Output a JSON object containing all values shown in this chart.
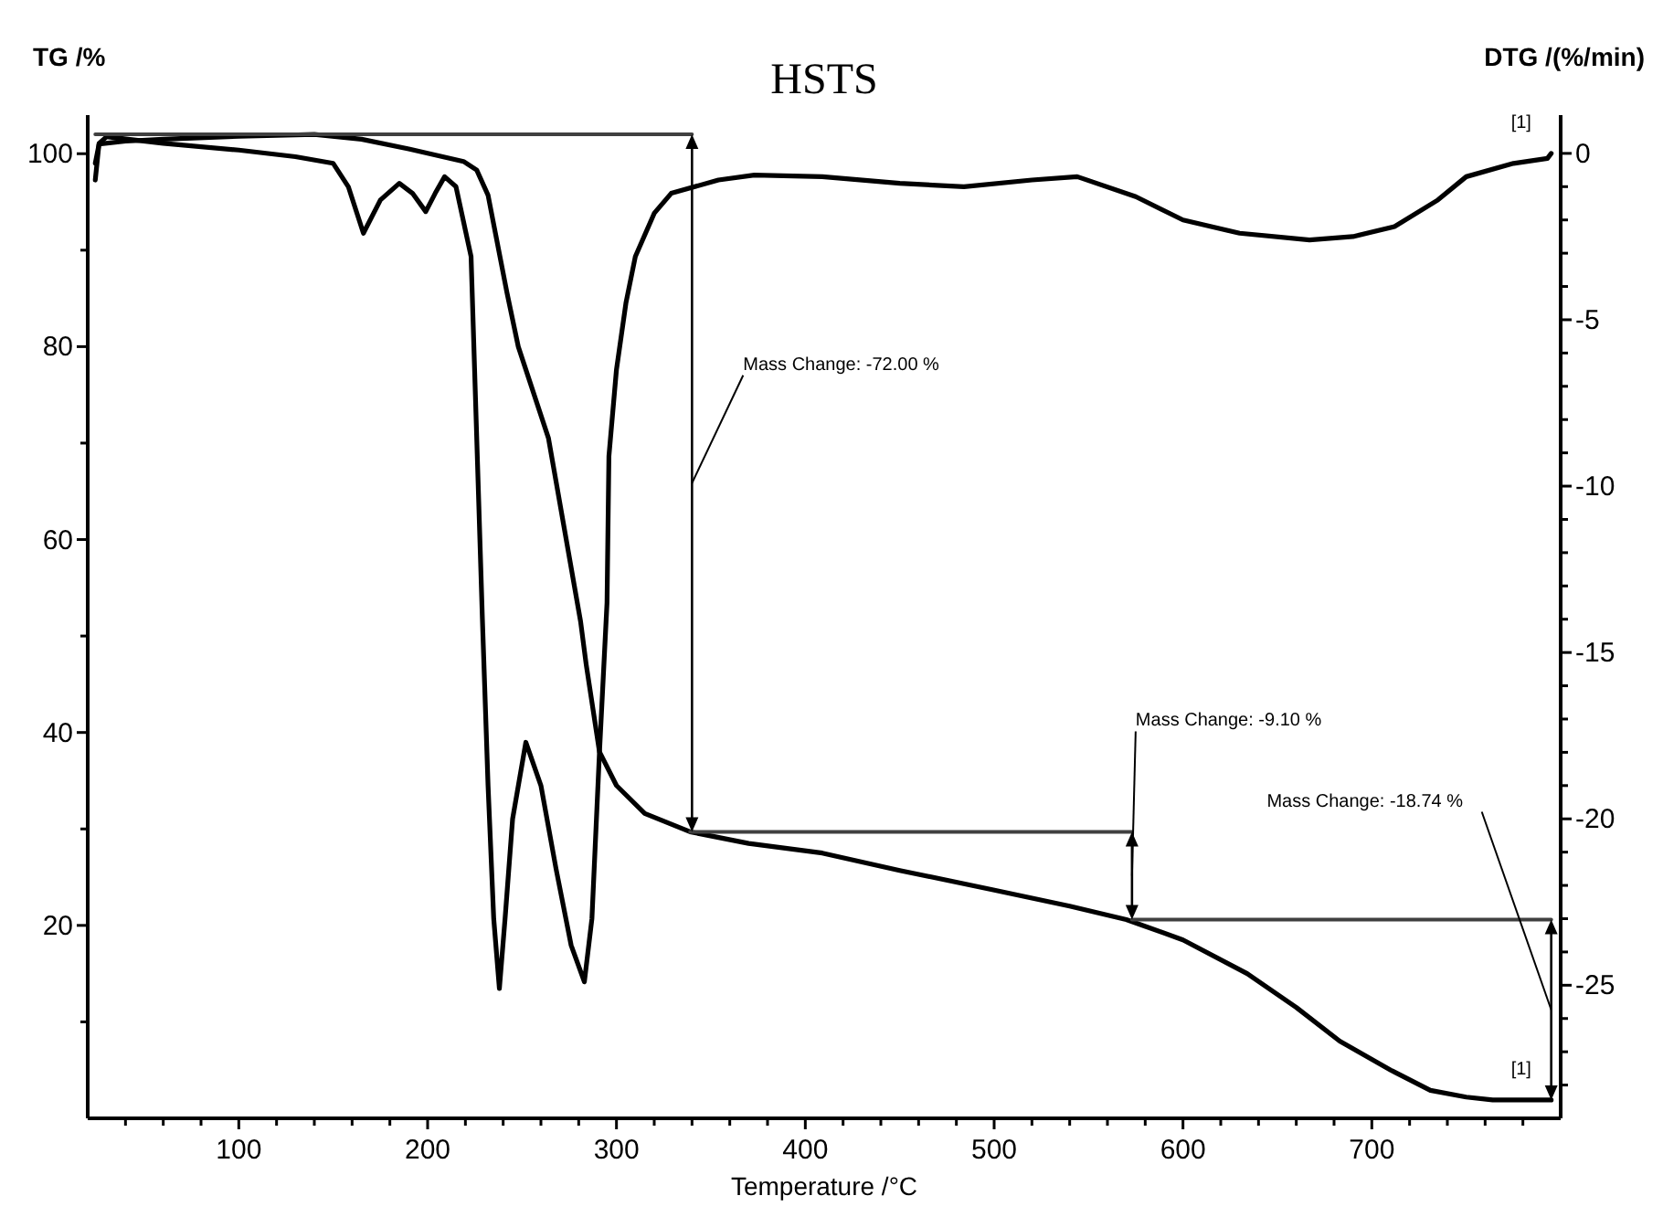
{
  "chart_data": {
    "type": "line",
    "title": "HSTS",
    "xlabel": "Temperature /°C",
    "ylabel": "TG /%",
    "y2label": "DTG /(%/min)",
    "xlim": [
      20,
      800
    ],
    "xticks": [
      {
        "value": 40,
        "label": null
      },
      {
        "value": 60,
        "label": null
      },
      {
        "value": 80,
        "label": null
      },
      100,
      {
        "value": 120,
        "label": null
      },
      {
        "value": 140,
        "label": null
      },
      {
        "value": 160,
        "label": null
      },
      {
        "value": 180,
        "label": null
      },
      200,
      {
        "value": 220,
        "label": null
      },
      {
        "value": 240,
        "label": null
      },
      {
        "value": 260,
        "label": null
      },
      {
        "value": 280,
        "label": null
      },
      300,
      {
        "value": 320,
        "label": null
      },
      {
        "value": 340,
        "label": null
      },
      {
        "value": 360,
        "label": null
      },
      {
        "value": 380,
        "label": null
      },
      400,
      {
        "value": 420,
        "label": null
      },
      {
        "value": 440,
        "label": null
      },
      {
        "value": 460,
        "label": null
      },
      {
        "value": 480,
        "label": null
      },
      500,
      {
        "value": 520,
        "label": null
      },
      {
        "value": 540,
        "label": null
      },
      {
        "value": 560,
        "label": null
      },
      {
        "value": 580,
        "label": null
      },
      600,
      {
        "value": 620,
        "label": null
      },
      {
        "value": 640,
        "label": null
      },
      {
        "value": 660,
        "label": null
      },
      {
        "value": 680,
        "label": null
      },
      700,
      {
        "value": 720,
        "label": null
      },
      {
        "value": 740,
        "label": null
      },
      {
        "value": 760,
        "label": null
      },
      {
        "value": 780,
        "label": null
      }
    ],
    "ylim": [
      0,
      104
    ],
    "yticks": [
      {
        "value": 10,
        "label": null
      },
      20,
      {
        "value": 30,
        "label": null
      },
      40,
      {
        "value": 50,
        "label": null
      },
      60,
      {
        "value": 70,
        "label": null
      },
      80,
      {
        "value": 90,
        "label": null
      },
      100
    ],
    "y2lim": [
      -29,
      1.15
    ],
    "y2ticks": [
      {
        "value": -28,
        "label": null
      },
      {
        "value": -27,
        "label": null
      },
      {
        "value": -26,
        "label": null
      },
      -25,
      {
        "value": -24,
        "label": null
      },
      {
        "value": -23,
        "label": null
      },
      {
        "value": -22,
        "label": null
      },
      {
        "value": -21,
        "label": null
      },
      -20,
      {
        "value": -19,
        "label": null
      },
      {
        "value": -18,
        "label": null
      },
      {
        "value": -17,
        "label": null
      },
      {
        "value": -16,
        "label": null
      },
      -15,
      {
        "value": -14,
        "label": null
      },
      {
        "value": -13,
        "label": null
      },
      {
        "value": -12,
        "label": null
      },
      {
        "value": -11,
        "label": null
      },
      -10,
      {
        "value": -9,
        "label": null
      },
      {
        "value": -8,
        "label": null
      },
      {
        "value": -7,
        "label": null
      },
      {
        "value": -6,
        "label": null
      },
      -5,
      {
        "value": -4,
        "label": null
      },
      {
        "value": -3,
        "label": null
      },
      {
        "value": -2,
        "label": null
      },
      {
        "value": -1,
        "label": null
      },
      0
    ],
    "series": [
      {
        "color": "#000000",
        "axis": "y",
        "x": [
          24,
          26,
          40,
          60,
          100,
          140,
          165,
          190,
          219,
          226,
          232,
          242,
          248,
          264,
          281,
          284,
          291,
          300,
          315,
          339,
          370,
          409,
          450,
          499,
          540,
          570,
          600,
          634,
          660,
          683,
          710,
          731,
          750,
          764,
          780,
          795
        ],
        "values": [
          99,
          101,
          101.3,
          101.5,
          101.8,
          102,
          101.5,
          100.5,
          99.2,
          98.3,
          95.7,
          85.6,
          80,
          70.5,
          51.5,
          47,
          38,
          34.5,
          31.6,
          29.7,
          28.5,
          27.5,
          25.7,
          23.7,
          22,
          20.6,
          18.5,
          15,
          11.5,
          8,
          5,
          2.9,
          2.2,
          1.9,
          1.9,
          1.9
        ]
      },
      {
        "color": "#000000",
        "axis": "y2",
        "x": [
          24,
          26,
          30,
          60,
          100,
          130,
          150,
          158,
          166,
          175,
          185,
          192,
          199,
          204,
          209,
          215,
          223,
          229,
          232,
          235,
          238,
          241,
          245,
          252,
          260,
          268,
          276,
          283,
          287,
          291,
          295,
          296,
          300,
          305,
          310,
          320,
          329,
          354,
          373,
          409,
          450,
          484,
          520,
          544,
          575,
          600,
          630,
          667,
          690,
          712,
          735,
          750,
          775,
          793,
          795
        ],
        "values": [
          -0.8,
          0.3,
          0.5,
          0.3,
          0.1,
          -0.1,
          -0.3,
          -1,
          -2.4,
          -1.4,
          -0.9,
          -1.2,
          -1.75,
          -1.2,
          -0.7,
          -1,
          -3.1,
          -14,
          -19,
          -23,
          -25.1,
          -23,
          -20,
          -17.7,
          -19,
          -21.5,
          -23.8,
          -24.9,
          -23,
          -18,
          -13.5,
          -9.1,
          -6.5,
          -4.5,
          -3.1,
          -1.8,
          -1.2,
          -0.8,
          -0.65,
          -0.7,
          -0.9,
          -1,
          -0.8,
          -0.7,
          -1.3,
          -2,
          -2.4,
          -2.6,
          -2.5,
          -2.2,
          -1.4,
          -0.7,
          -0.3,
          -0.15,
          0
        ]
      },
      {
        "color": "#404040",
        "axis": "y",
        "x": [
          24,
          340
        ],
        "values": [
          102,
          102
        ]
      },
      {
        "color": "#404040",
        "axis": "y",
        "x": [
          339,
          573
        ],
        "values": [
          29.7,
          29.7
        ]
      },
      {
        "color": "#404040",
        "axis": "y",
        "x": [
          573,
          795
        ],
        "values": [
          20.6,
          20.6
        ]
      }
    ],
    "annotations": [
      "Mass Change: -72.00 %",
      "Mass Change: -9.10 %",
      "Mass Change: -18.74 %",
      "[1]",
      "[1]"
    ]
  }
}
